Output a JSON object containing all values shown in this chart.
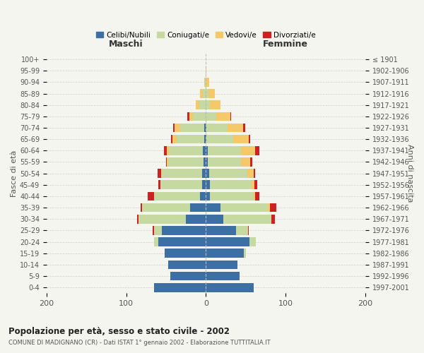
{
  "age_groups": [
    "0-4",
    "5-9",
    "10-14",
    "15-19",
    "20-24",
    "25-29",
    "30-34",
    "35-39",
    "40-44",
    "45-49",
    "50-54",
    "55-59",
    "60-64",
    "65-69",
    "70-74",
    "75-79",
    "80-84",
    "85-89",
    "90-94",
    "95-99",
    "100+"
  ],
  "birth_years": [
    "1997-2001",
    "1992-1996",
    "1987-1991",
    "1982-1986",
    "1977-1981",
    "1972-1976",
    "1967-1971",
    "1962-1966",
    "1957-1961",
    "1952-1956",
    "1947-1951",
    "1942-1946",
    "1937-1941",
    "1932-1936",
    "1927-1931",
    "1922-1926",
    "1917-1921",
    "1912-1916",
    "1907-1911",
    "1902-1906",
    "≤ 1901"
  ],
  "males": {
    "celibi": [
      65,
      45,
      47,
      52,
      60,
      55,
      25,
      20,
      7,
      5,
      5,
      3,
      4,
      2,
      2,
      0,
      0,
      0,
      0,
      0,
      0
    ],
    "coniugati": [
      0,
      0,
      0,
      0,
      5,
      10,
      60,
      60,
      58,
      52,
      50,
      44,
      42,
      35,
      30,
      16,
      8,
      4,
      1,
      0,
      0
    ],
    "vedovi": [
      0,
      0,
      0,
      0,
      0,
      0,
      0,
      0,
      0,
      0,
      1,
      2,
      3,
      5,
      7,
      5,
      5,
      3,
      1,
      0,
      0
    ],
    "divorziati": [
      0,
      0,
      0,
      0,
      0,
      2,
      1,
      2,
      8,
      3,
      5,
      1,
      4,
      2,
      2,
      2,
      0,
      0,
      0,
      0,
      0
    ]
  },
  "females": {
    "nubili": [
      60,
      42,
      40,
      48,
      55,
      38,
      22,
      18,
      5,
      5,
      4,
      2,
      2,
      1,
      1,
      0,
      0,
      0,
      0,
      0,
      0
    ],
    "coniugate": [
      0,
      0,
      0,
      2,
      8,
      15,
      60,
      60,
      55,
      52,
      48,
      42,
      42,
      33,
      26,
      13,
      5,
      3,
      1,
      0,
      0
    ],
    "vedove": [
      0,
      0,
      0,
      0,
      0,
      0,
      0,
      2,
      2,
      4,
      8,
      12,
      18,
      20,
      20,
      18,
      13,
      8,
      3,
      1,
      0
    ],
    "divorziate": [
      0,
      0,
      0,
      0,
      0,
      1,
      5,
      8,
      5,
      3,
      2,
      2,
      5,
      2,
      2,
      1,
      0,
      0,
      0,
      0,
      0
    ]
  },
  "colors": {
    "celibi": "#3d6fa3",
    "coniugati": "#c5d9a0",
    "vedovi": "#f5c96a",
    "divorziati": "#cc2222"
  },
  "title": "Popolazione per età, sesso e stato civile - 2002",
  "subtitle": "COMUNE DI MADIGNANO (CR) - Dati ISTAT 1° gennaio 2002 - Elaborazione TUTTITALIA.IT",
  "xlabel_left": "Maschi",
  "xlabel_right": "Femmine",
  "ylabel_left": "Fasce di età",
  "ylabel_right": "Anni di nascita",
  "xlim": 200,
  "background_color": "#f5f5f0",
  "grid_color": "#cccccc",
  "legend_labels": [
    "Celibi/Nubili",
    "Coniugati/e",
    "Vedovi/e",
    "Divorziati/e"
  ]
}
